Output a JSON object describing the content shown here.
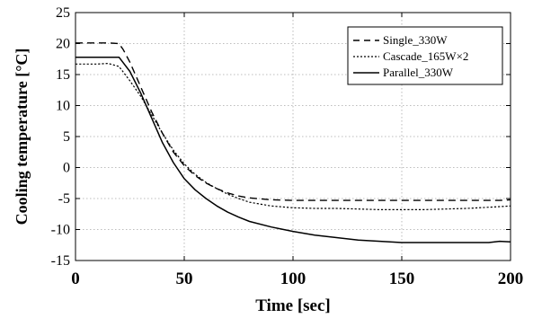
{
  "chart_data": {
    "type": "line",
    "xlabel": "Time [sec]",
    "ylabel": "Cooling temperature  [°C]",
    "xlim": [
      0,
      200
    ],
    "ylim": [
      -15,
      25
    ],
    "xticks": [
      0,
      50,
      100,
      150,
      200
    ],
    "yticks": [
      -15,
      -10,
      -5,
      0,
      5,
      10,
      15,
      20,
      25
    ],
    "grid": true,
    "legend_position": "top-right",
    "series": [
      {
        "name": "Single_330W",
        "style": "dashed",
        "color": "#000000",
        "x": [
          0,
          5,
          10,
          15,
          20,
          22,
          25,
          30,
          35,
          40,
          45,
          50,
          55,
          60,
          65,
          70,
          75,
          80,
          90,
          100,
          110,
          120,
          130,
          140,
          150,
          160,
          170,
          180,
          190,
          195,
          200
        ],
        "y": [
          20.1,
          20.1,
          20.1,
          20.1,
          20.0,
          19.0,
          17.0,
          13.0,
          9.0,
          5.5,
          2.5,
          0.3,
          -1.3,
          -2.5,
          -3.4,
          -4.1,
          -4.6,
          -4.9,
          -5.2,
          -5.3,
          -5.3,
          -5.3,
          -5.3,
          -5.3,
          -5.3,
          -5.3,
          -5.3,
          -5.3,
          -5.3,
          -5.3,
          -5.2
        ]
      },
      {
        "name": "Cascade_165W×2",
        "style": "dotted",
        "color": "#000000",
        "x": [
          0,
          5,
          10,
          15,
          20,
          25,
          30,
          35,
          40,
          45,
          50,
          55,
          60,
          65,
          70,
          75,
          80,
          90,
          100,
          110,
          120,
          130,
          140,
          150,
          160,
          170,
          180,
          190,
          200
        ],
        "y": [
          16.7,
          16.7,
          16.7,
          16.8,
          16.3,
          14.0,
          11.5,
          8.5,
          5.5,
          2.8,
          0.6,
          -1.1,
          -2.4,
          -3.4,
          -4.3,
          -5.0,
          -5.6,
          -6.2,
          -6.5,
          -6.6,
          -6.6,
          -6.7,
          -6.8,
          -6.8,
          -6.8,
          -6.7,
          -6.6,
          -6.4,
          -6.2
        ]
      },
      {
        "name": "Parallel_330W",
        "style": "solid",
        "color": "#000000",
        "x": [
          0,
          5,
          10,
          15,
          20,
          25,
          30,
          35,
          40,
          45,
          50,
          55,
          60,
          65,
          70,
          75,
          80,
          90,
          100,
          110,
          120,
          130,
          140,
          150,
          160,
          170,
          180,
          190,
          195,
          200
        ],
        "y": [
          17.8,
          17.8,
          17.8,
          17.8,
          17.8,
          15.5,
          12.0,
          8.0,
          4.0,
          0.8,
          -1.8,
          -3.6,
          -5.0,
          -6.2,
          -7.2,
          -8.0,
          -8.7,
          -9.6,
          -10.3,
          -10.9,
          -11.3,
          -11.7,
          -11.9,
          -12.1,
          -12.1,
          -12.1,
          -12.1,
          -12.1,
          -11.9,
          -12.0
        ]
      }
    ]
  }
}
